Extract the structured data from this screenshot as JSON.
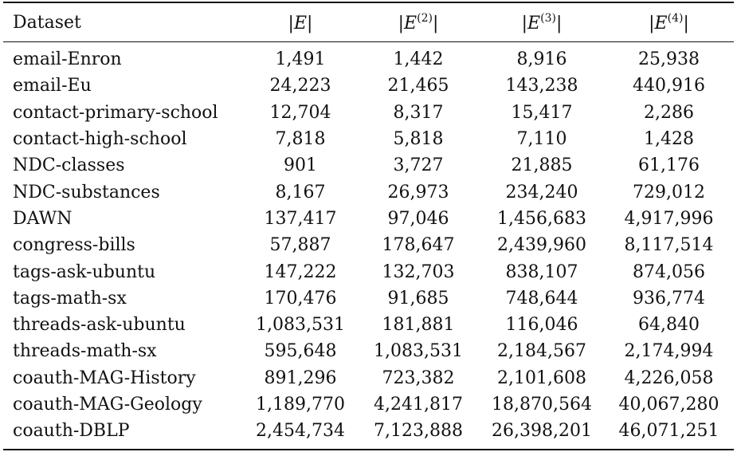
{
  "table": {
    "header": {
      "dataset": "Dataset",
      "e1": {
        "bar_left": "|",
        "symbol": "E",
        "sup": "",
        "bar_right": "|"
      },
      "e2": {
        "bar_left": "|",
        "symbol": "E",
        "sup": "(2)",
        "bar_right": "|"
      },
      "e3": {
        "bar_left": "|",
        "symbol": "E",
        "sup": "(3)",
        "bar_right": "|"
      },
      "e4": {
        "bar_left": "|",
        "symbol": "E",
        "sup": "(4)",
        "bar_right": "|"
      }
    },
    "rows": [
      {
        "dataset": "email-Enron",
        "e1": "1,491",
        "e2": "1,442",
        "e3": "8,916",
        "e4": "25,938"
      },
      {
        "dataset": "email-Eu",
        "e1": "24,223",
        "e2": "21,465",
        "e3": "143,238",
        "e4": "440,916"
      },
      {
        "dataset": "contact-primary-school",
        "e1": "12,704",
        "e2": "8,317",
        "e3": "15,417",
        "e4": "2,286"
      },
      {
        "dataset": "contact-high-school",
        "e1": "7,818",
        "e2": "5,818",
        "e3": "7,110",
        "e4": "1,428"
      },
      {
        "dataset": "NDC-classes",
        "e1": "901",
        "e2": "3,727",
        "e3": "21,885",
        "e4": "61,176"
      },
      {
        "dataset": "NDC-substances",
        "e1": "8,167",
        "e2": "26,973",
        "e3": "234,240",
        "e4": "729,012"
      },
      {
        "dataset": "DAWN",
        "e1": "137,417",
        "e2": "97,046",
        "e3": "1,456,683",
        "e4": "4,917,996"
      },
      {
        "dataset": "congress-bills",
        "e1": "57,887",
        "e2": "178,647",
        "e3": "2,439,960",
        "e4": "8,117,514"
      },
      {
        "dataset": "tags-ask-ubuntu",
        "e1": "147,222",
        "e2": "132,703",
        "e3": "838,107",
        "e4": "874,056"
      },
      {
        "dataset": "tags-math-sx",
        "e1": "170,476",
        "e2": "91,685",
        "e3": "748,644",
        "e4": "936,774"
      },
      {
        "dataset": "threads-ask-ubuntu",
        "e1": "1,083,531",
        "e2": "181,881",
        "e3": "116,046",
        "e4": "64,840"
      },
      {
        "dataset": "threads-math-sx",
        "e1": "595,648",
        "e2": "1,083,531",
        "e3": "2,184,567",
        "e4": "2,174,994"
      },
      {
        "dataset": "coauth-MAG-History",
        "e1": "891,296",
        "e2": "723,382",
        "e3": "2,101,608",
        "e4": "4,226,058"
      },
      {
        "dataset": "coauth-MAG-Geology",
        "e1": "1,189,770",
        "e2": "4,241,817",
        "e3": "18,870,564",
        "e4": "40,067,280"
      },
      {
        "dataset": "coauth-DBLP",
        "e1": "2,454,734",
        "e2": "7,123,888",
        "e3": "26,398,201",
        "e4": "46,071,251"
      }
    ]
  }
}
